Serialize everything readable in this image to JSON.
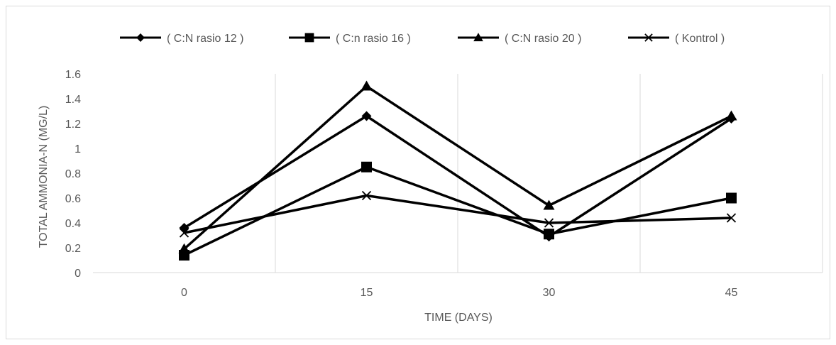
{
  "chart_data": {
    "type": "line",
    "title": "",
    "xlabel": "TIME (DAYS)",
    "ylabel": "TOTAL AMMONIA-N (MG/L)",
    "categories": [
      "0",
      "15",
      "30",
      "45"
    ],
    "ylim": [
      0,
      1.6
    ],
    "yticks": [
      0,
      0.2,
      0.4,
      0.6,
      0.8,
      1,
      1.2,
      1.4,
      1.6
    ],
    "ytick_labels": [
      "0",
      "0.2",
      "0.4",
      "0.6",
      "0.8",
      "1",
      "1.2",
      "1.4",
      "1.6"
    ],
    "grid": "vertical",
    "legend_position": "top",
    "series": [
      {
        "name": "( C:N rasio 12 )",
        "marker": "diamond",
        "values": [
          0.36,
          1.26,
          0.29,
          1.24
        ]
      },
      {
        "name": "( C:n rasio 16 )",
        "marker": "square",
        "values": [
          0.14,
          0.85,
          0.31,
          0.6
        ]
      },
      {
        "name": "( C:N rasio 20 )",
        "marker": "triangle",
        "values": [
          0.19,
          1.5,
          0.54,
          1.26
        ]
      },
      {
        "name": "( Kontrol )",
        "marker": "x",
        "values": [
          0.32,
          0.62,
          0.4,
          0.44
        ]
      }
    ],
    "colors": {
      "line": "#000000",
      "grid": "#d9d9d9",
      "text": "#595959"
    }
  }
}
